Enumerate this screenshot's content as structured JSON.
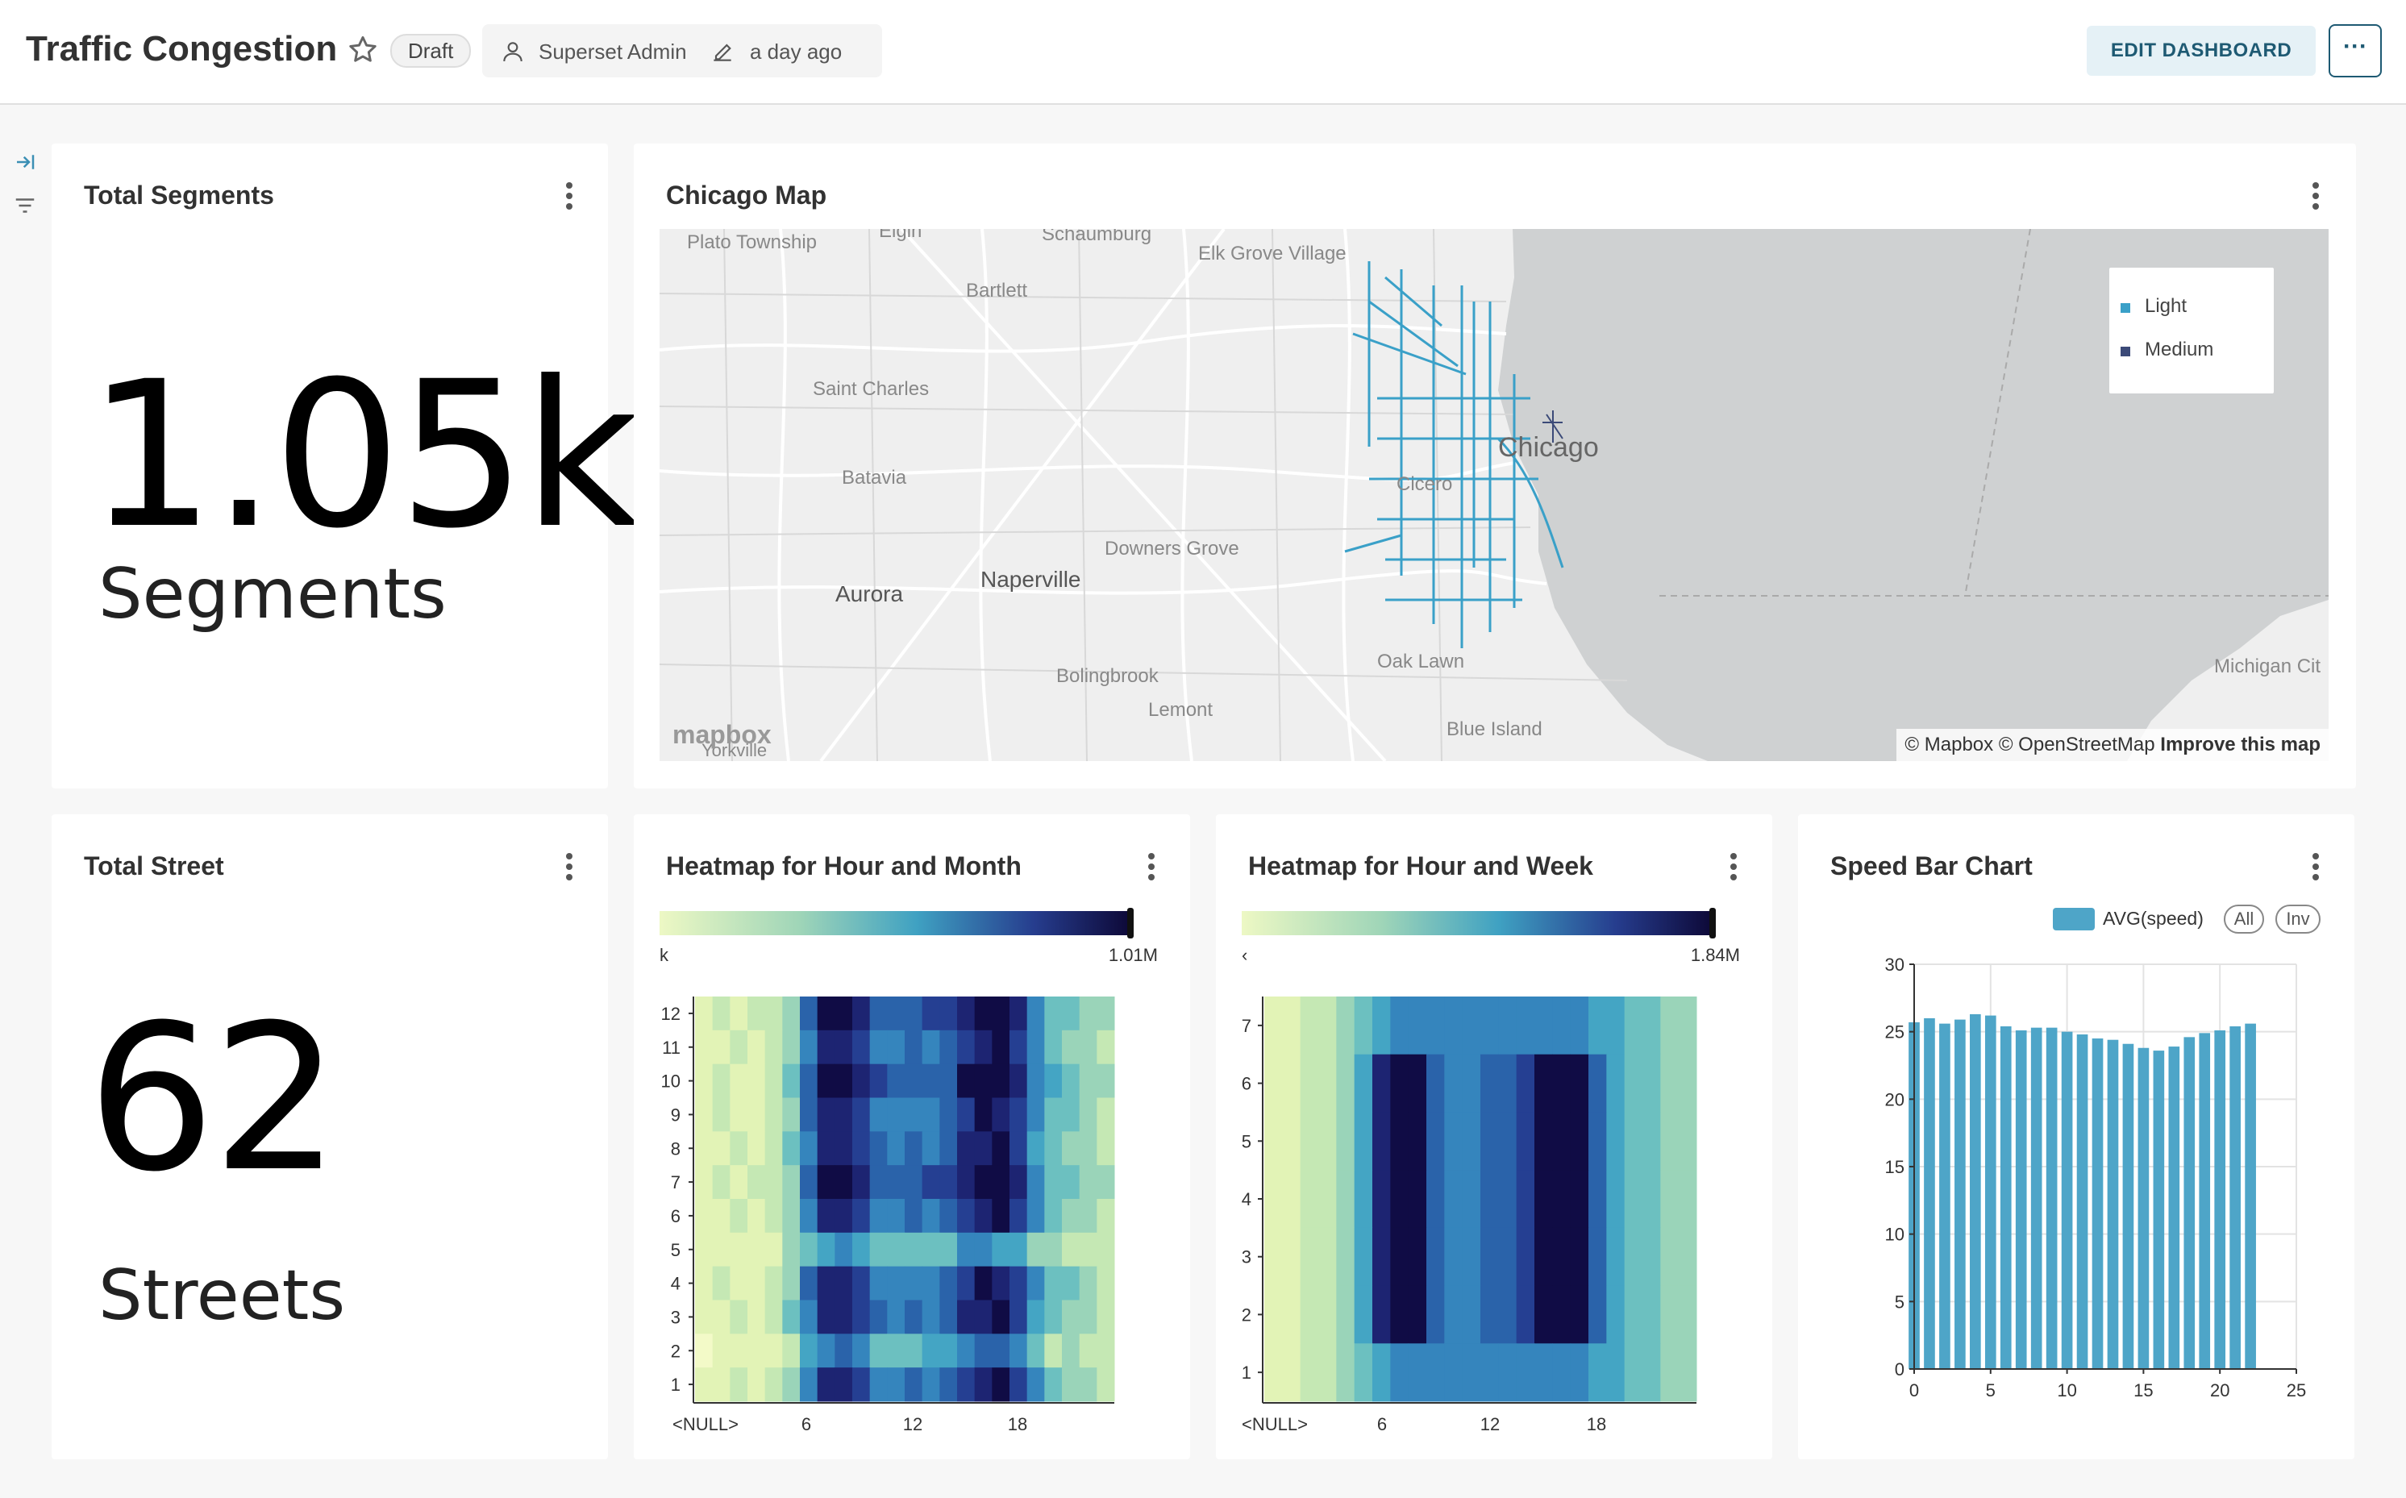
{
  "header": {
    "title": "Traffic Congestion",
    "draft_label": "Draft",
    "owner": "Superset Admin",
    "modified": "a day ago",
    "edit_label": "EDIT DASHBOARD",
    "more_label": "···"
  },
  "cards": {
    "total_segments": {
      "title": "Total Segments",
      "value": "1.05k",
      "subtitle": "Segments"
    },
    "chicago_map": {
      "title": "Chicago Map",
      "legend": [
        {
          "label": "Light",
          "color": "#3aa0c8"
        },
        {
          "label": "Medium",
          "color": "#3b4a78"
        }
      ],
      "places": [
        {
          "name": "Plato Township"
        },
        {
          "name": "Elgin"
        },
        {
          "name": "Schaumburg"
        },
        {
          "name": "Elk Grove Village"
        },
        {
          "name": "Bartlett"
        },
        {
          "name": "Saint Charles"
        },
        {
          "name": "Batavia"
        },
        {
          "name": "Chicago"
        },
        {
          "name": "Cicero"
        },
        {
          "name": "Downers Grove"
        },
        {
          "name": "Aurora"
        },
        {
          "name": "Naperville"
        },
        {
          "name": "Oak Lawn"
        },
        {
          "name": "Bolingbrook"
        },
        {
          "name": "Lemont"
        },
        {
          "name": "Blue Island"
        },
        {
          "name": "Michigan Cit"
        },
        {
          "name": "Yorkville"
        }
      ],
      "logo": "mapbox",
      "attribution": "© Mapbox © OpenStreetMap",
      "improve": "Improve this map"
    },
    "total_street": {
      "title": "Total Street",
      "value": "62",
      "subtitle": "Streets"
    },
    "heatmap_month": {
      "title": "Heatmap for Hour and Month",
      "legend_min": "k",
      "legend_max": "1.01M",
      "y_ticks": [
        "12",
        "11",
        "10",
        "9",
        "8",
        "7",
        "6",
        "5",
        "4",
        "3",
        "2",
        "1"
      ],
      "x_ticks": [
        "<NULL>",
        "6",
        "12",
        "18"
      ]
    },
    "heatmap_week": {
      "title": "Heatmap for Hour and Week",
      "legend_min": "‹",
      "legend_max": "1.84M",
      "y_ticks": [
        "7",
        "6",
        "5",
        "4",
        "3",
        "2",
        "1"
      ],
      "x_ticks": [
        "<NULL>",
        "6",
        "12",
        "18"
      ]
    },
    "speed_bar": {
      "title": "Speed Bar Chart",
      "legend_label": "AVG(speed)",
      "all_label": "All",
      "inv_label": "Inv",
      "color": "#4ea5c8"
    }
  },
  "chart_data": [
    {
      "type": "heatmap",
      "title": "Heatmap for Hour and Month",
      "x": [
        "<NULL>",
        "6",
        "12",
        "18"
      ],
      "y": [
        "1",
        "2",
        "3",
        "4",
        "5",
        "6",
        "7",
        "8",
        "9",
        "10",
        "11",
        "12"
      ],
      "color_range": [
        "k",
        "1.01M"
      ]
    },
    {
      "type": "heatmap",
      "title": "Heatmap for Hour and Week",
      "x": [
        "<NULL>",
        "6",
        "12",
        "18"
      ],
      "y": [
        "1",
        "2",
        "3",
        "4",
        "5",
        "6",
        "7"
      ],
      "color_range": [
        "‹",
        "1.84M"
      ]
    },
    {
      "type": "bar",
      "title": "Speed Bar Chart",
      "series": [
        {
          "name": "AVG(speed)",
          "values": [
            25.7,
            26.0,
            25.6,
            25.9,
            26.3,
            26.2,
            25.4,
            25.1,
            25.3,
            25.3,
            25.0,
            24.8,
            24.5,
            24.4,
            24.1,
            23.8,
            23.6,
            23.9,
            24.6,
            24.9,
            25.1,
            25.4,
            25.6
          ]
        }
      ],
      "x": [
        0,
        1,
        2,
        3,
        4,
        5,
        6,
        7,
        8,
        9,
        10,
        11,
        12,
        13,
        14,
        15,
        16,
        17,
        18,
        19,
        20,
        21,
        22
      ],
      "x_ticks": [
        0,
        5,
        10,
        15,
        20,
        25
      ],
      "y_ticks": [
        0,
        5,
        10,
        15,
        20,
        25,
        30
      ],
      "ylim": [
        0,
        30
      ],
      "xlim": [
        0,
        25
      ],
      "grid": true,
      "legend_position": "top-right"
    }
  ]
}
